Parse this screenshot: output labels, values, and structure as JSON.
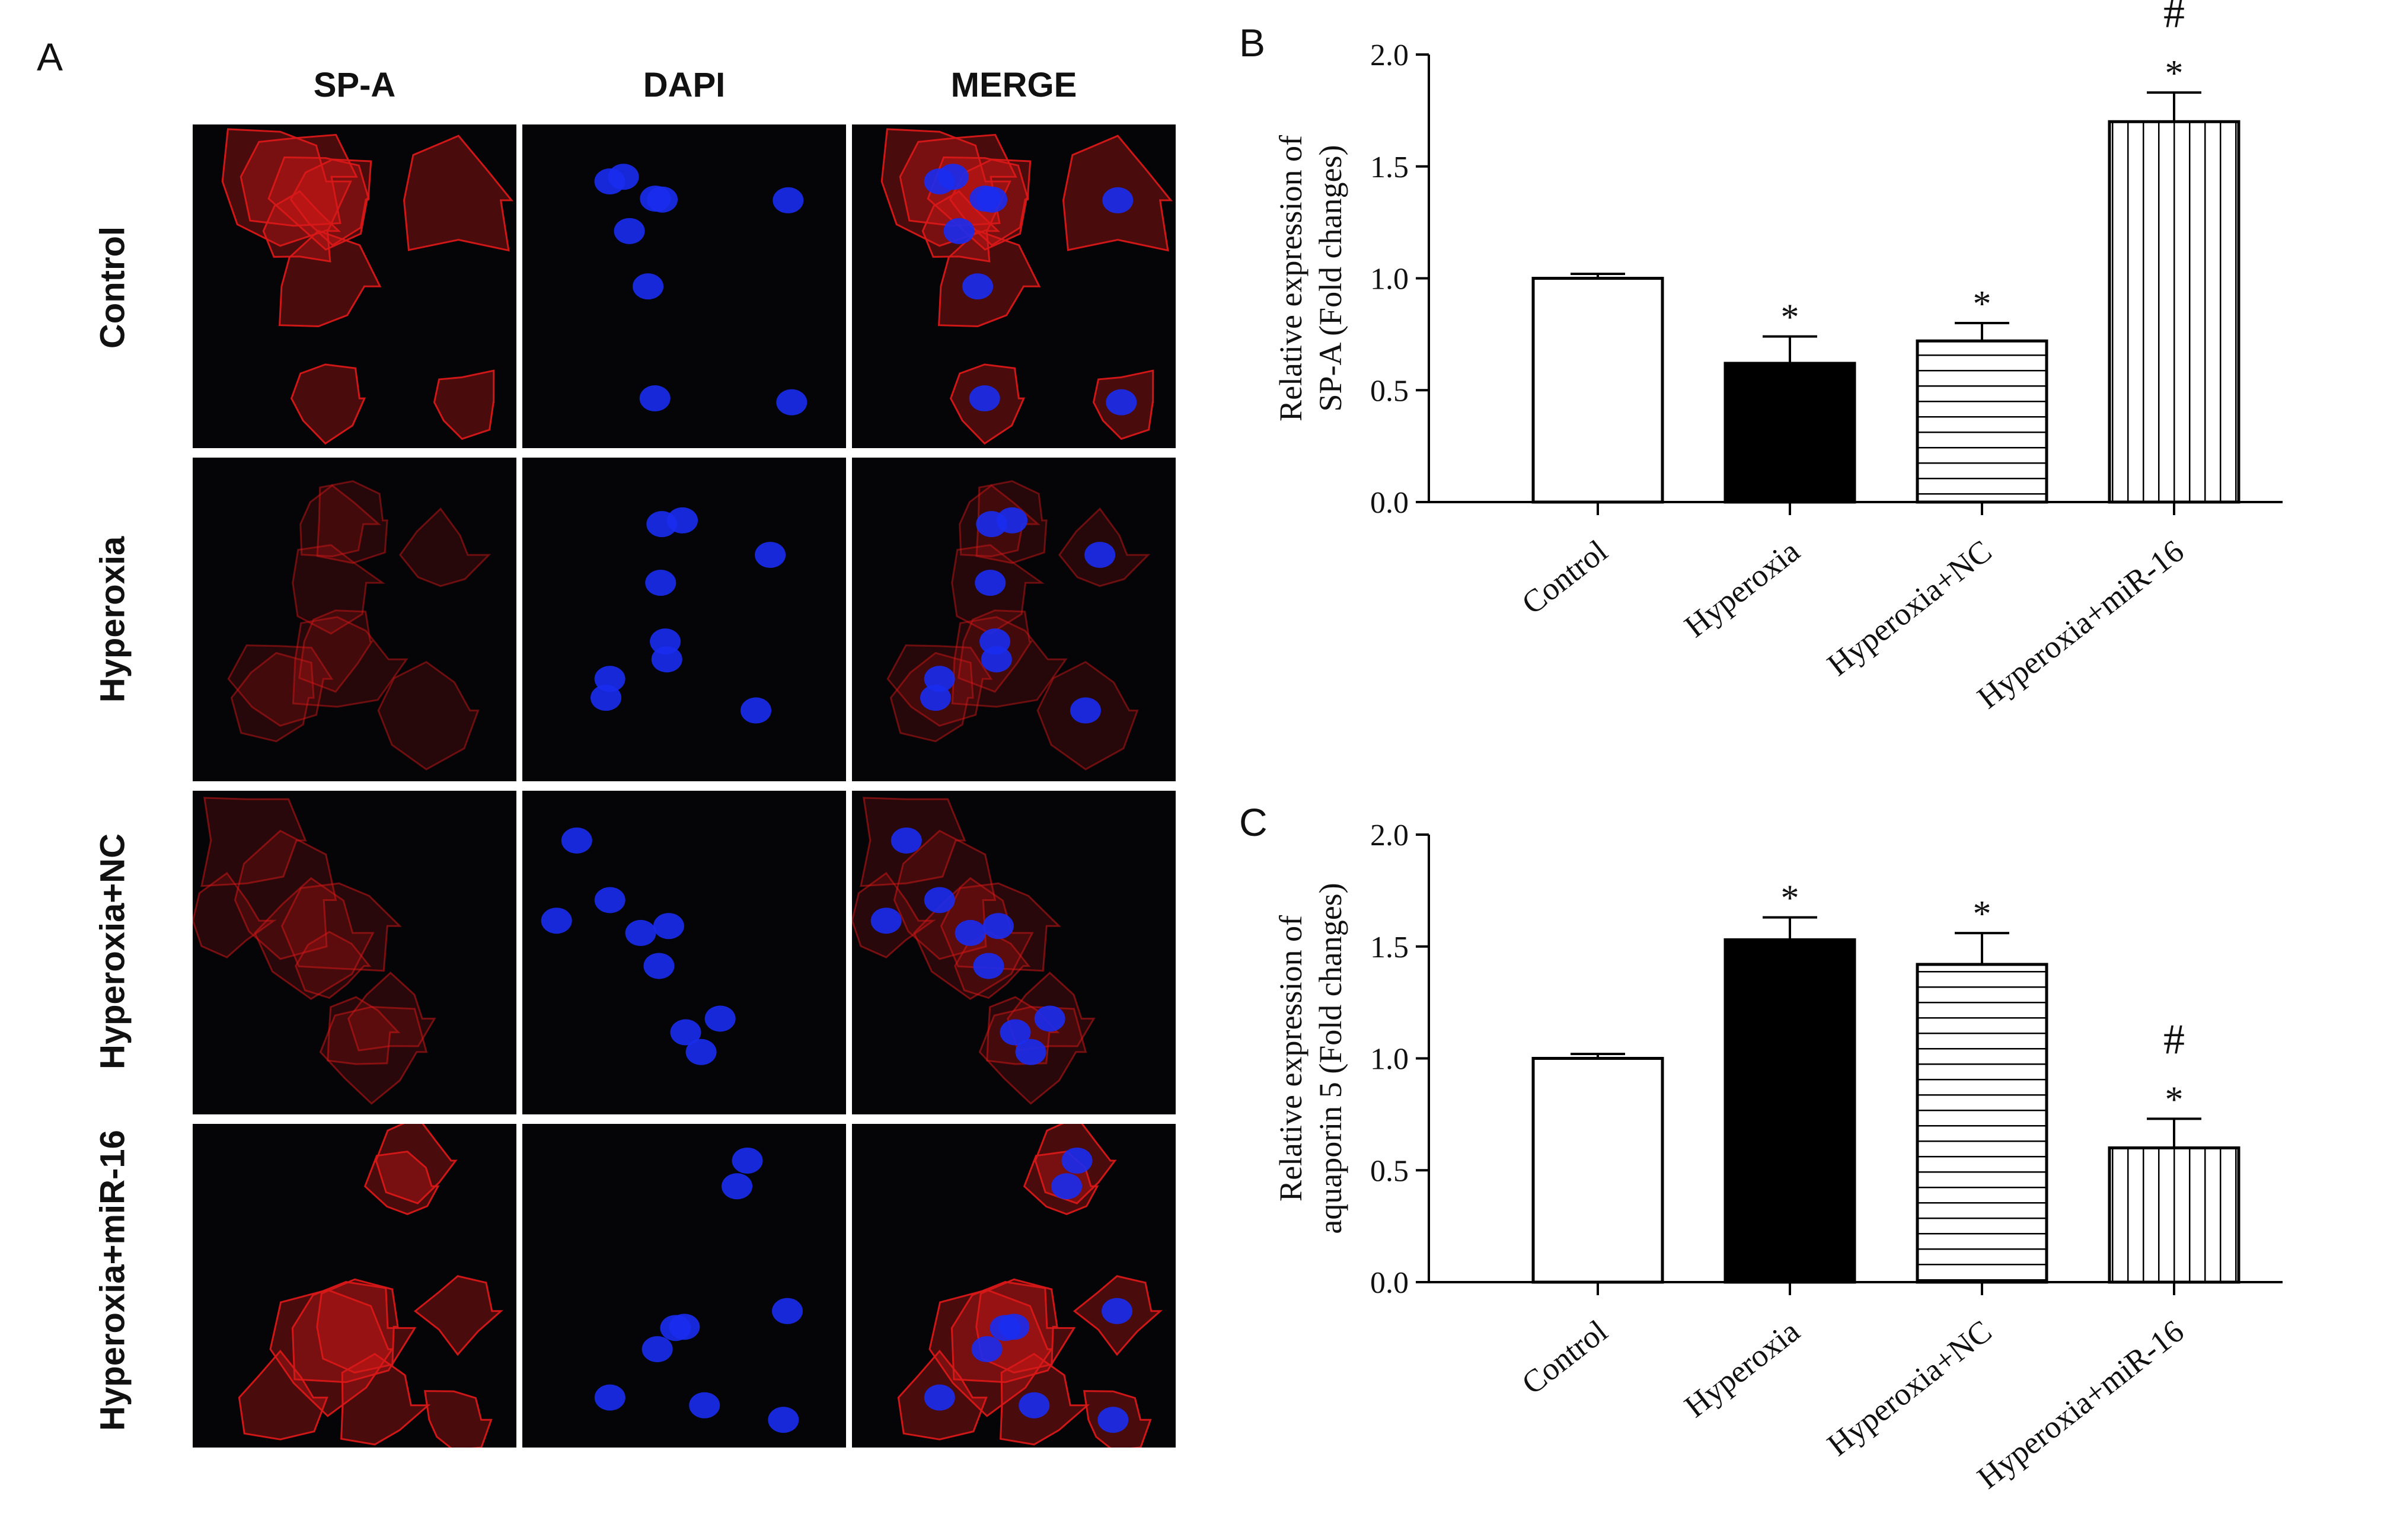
{
  "panel_a": {
    "letter": "A",
    "columns": [
      "SP-A",
      "DAPI",
      "MERGE"
    ],
    "rows": [
      "Control",
      "Hyperoxia",
      "Hyperoxia+NC",
      "Hyperoxia+miR-16"
    ],
    "channel_colors": {
      "spa": "#d81818",
      "dapi": "#1a2cf0",
      "background": "#050508"
    }
  },
  "chart_data": [
    {
      "panel": "B",
      "type": "bar",
      "categories": [
        "Control",
        "Hyperoxia",
        "Hyperoxia+NC",
        "Hyperoxia+miR-16"
      ],
      "values": [
        1.0,
        0.62,
        0.72,
        1.7
      ],
      "errors": [
        0.02,
        0.12,
        0.08,
        0.13
      ],
      "patterns": [
        "white",
        "black",
        "horizontal-stripes",
        "vertical-stripes"
      ],
      "annotations": [
        [],
        [
          "*"
        ],
        [
          "*"
        ],
        [
          "#",
          "*"
        ]
      ],
      "ylabel_line1": "Relative expression of",
      "ylabel_line2": "SP-A (Fold changes)",
      "ylim": [
        0,
        2.0
      ],
      "yticks": [
        "0.0",
        "0.5",
        "1.0",
        "1.5",
        "2.0"
      ]
    },
    {
      "panel": "C",
      "type": "bar",
      "categories": [
        "Control",
        "Hyperoxia",
        "Hyperoxia+NC",
        "Hyperoxia+miR-16"
      ],
      "values": [
        1.0,
        1.53,
        1.42,
        0.6
      ],
      "errors": [
        0.02,
        0.1,
        0.14,
        0.13
      ],
      "patterns": [
        "white",
        "black",
        "horizontal-stripes",
        "vertical-stripes"
      ],
      "annotations": [
        [],
        [
          "*"
        ],
        [
          "*"
        ],
        [
          "#",
          "*"
        ]
      ],
      "ylabel_line1": "Relative expression of",
      "ylabel_line2": "aquaporin 5 (Fold changes)",
      "ylim": [
        0,
        2.0
      ],
      "yticks": [
        "0.0",
        "0.5",
        "1.0",
        "1.5",
        "2.0"
      ]
    }
  ]
}
